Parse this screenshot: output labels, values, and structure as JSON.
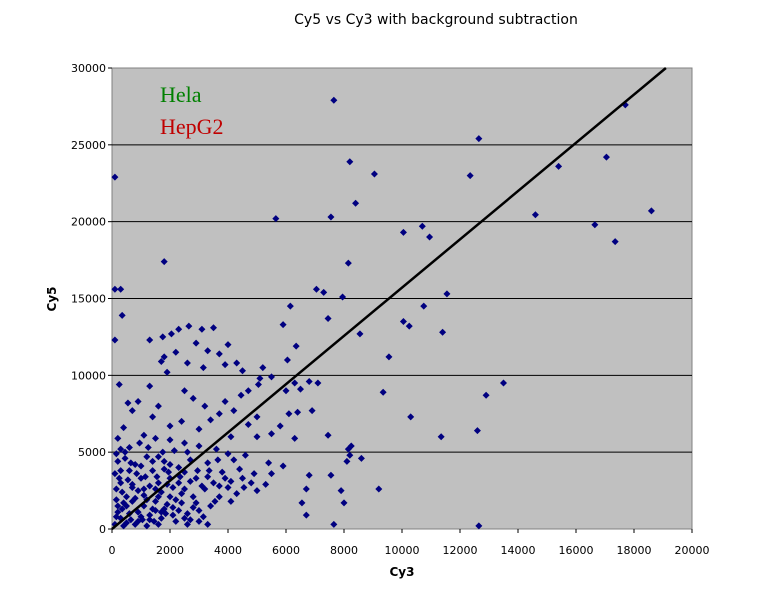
{
  "chart_data": {
    "type": "scatter",
    "title": "Cy5 vs Cy3 with background subtraction",
    "xlabel": "Cy3",
    "ylabel": "Cy5",
    "xlim": [
      0,
      20000
    ],
    "ylim": [
      0,
      30000
    ],
    "x_ticks": [
      0,
      2000,
      4000,
      6000,
      8000,
      10000,
      12000,
      14000,
      16000,
      18000,
      20000
    ],
    "y_ticks": [
      0,
      5000,
      10000,
      15000,
      20000,
      25000,
      30000
    ],
    "grid": "horizontal",
    "plot_background": "#c0c0c0",
    "marker_color": "#000080",
    "marker": "diamond",
    "annotations": [
      {
        "text": "Hela",
        "color": "#008000"
      },
      {
        "text": "HepG2",
        "color": "#c00000"
      }
    ],
    "trendline": {
      "from": [
        0,
        0
      ],
      "to": [
        19100,
        30000
      ],
      "color": "#000000"
    },
    "series": [
      {
        "points": [
          [
            7650,
            27900
          ],
          [
            17700,
            27600
          ],
          [
            12650,
            25400
          ],
          [
            8200,
            23900
          ],
          [
            9050,
            23100
          ],
          [
            12350,
            23000
          ],
          [
            100,
            22900
          ],
          [
            15400,
            23600
          ],
          [
            17050,
            24200
          ],
          [
            8400,
            21200
          ],
          [
            14600,
            20450
          ],
          [
            18600,
            20700
          ],
          [
            5650,
            20200
          ],
          [
            7550,
            20300
          ],
          [
            10700,
            19700
          ],
          [
            16650,
            19800
          ],
          [
            10050,
            19300
          ],
          [
            10950,
            19000
          ],
          [
            17350,
            18700
          ],
          [
            1800,
            17400
          ],
          [
            8150,
            17300
          ],
          [
            7050,
            15600
          ],
          [
            7300,
            15400
          ],
          [
            7950,
            15100
          ],
          [
            6150,
            14500
          ],
          [
            10750,
            14500
          ],
          [
            11550,
            15300
          ],
          [
            300,
            15600
          ],
          [
            100,
            15600
          ],
          [
            350,
            13900
          ],
          [
            7450,
            13700
          ],
          [
            10050,
            13500
          ],
          [
            10250,
            13200
          ],
          [
            5900,
            13300
          ],
          [
            8550,
            12700
          ],
          [
            11400,
            12800
          ],
          [
            6350,
            11900
          ],
          [
            9550,
            11200
          ],
          [
            6050,
            11000
          ],
          [
            100,
            12300
          ],
          [
            1300,
            12300
          ],
          [
            2300,
            13000
          ],
          [
            2650,
            13200
          ],
          [
            3100,
            13000
          ],
          [
            3500,
            13100
          ],
          [
            1750,
            12500
          ],
          [
            2050,
            12700
          ],
          [
            2900,
            12100
          ],
          [
            4000,
            12000
          ],
          [
            1800,
            11200
          ],
          [
            2200,
            11500
          ],
          [
            3300,
            11600
          ],
          [
            3700,
            11400
          ],
          [
            1700,
            10900
          ],
          [
            2600,
            10800
          ],
          [
            3150,
            10500
          ],
          [
            1900,
            10200
          ],
          [
            4300,
            10800
          ],
          [
            5200,
            10500
          ],
          [
            3900,
            10700
          ],
          [
            4500,
            10300
          ],
          [
            5500,
            9900
          ],
          [
            5100,
            9800
          ],
          [
            9350,
            8900
          ],
          [
            13500,
            9500
          ],
          [
            12900,
            8700
          ],
          [
            5050,
            9400
          ],
          [
            6300,
            9500
          ],
          [
            6800,
            9600
          ],
          [
            7100,
            9500
          ],
          [
            6500,
            9100
          ],
          [
            6000,
            9000
          ],
          [
            4700,
            9000
          ],
          [
            1300,
            9300
          ],
          [
            250,
            9400
          ],
          [
            550,
            8200
          ],
          [
            900,
            8300
          ],
          [
            1600,
            8000
          ],
          [
            2500,
            9000
          ],
          [
            3200,
            8000
          ],
          [
            3900,
            8300
          ],
          [
            4450,
            8700
          ],
          [
            2800,
            8500
          ],
          [
            6400,
            7600
          ],
          [
            6100,
            7500
          ],
          [
            10300,
            7300
          ],
          [
            6900,
            7700
          ],
          [
            5000,
            7300
          ],
          [
            4200,
            7700
          ],
          [
            3700,
            7500
          ],
          [
            3400,
            7100
          ],
          [
            2400,
            7000
          ],
          [
            1400,
            7300
          ],
          [
            700,
            7700
          ],
          [
            400,
            6600
          ],
          [
            2000,
            6700
          ],
          [
            3000,
            6500
          ],
          [
            4100,
            6000
          ],
          [
            5000,
            6000
          ],
          [
            5500,
            6200
          ],
          [
            4700,
            6800
          ],
          [
            5800,
            6700
          ],
          [
            12600,
            6400
          ],
          [
            11350,
            6000
          ],
          [
            7450,
            6100
          ],
          [
            6300,
            5900
          ],
          [
            8150,
            5200
          ],
          [
            8250,
            5400
          ],
          [
            8200,
            4800
          ],
          [
            8600,
            4600
          ],
          [
            8100,
            4400
          ],
          [
            5400,
            4300
          ],
          [
            5900,
            4100
          ],
          [
            4600,
            4800
          ],
          [
            4000,
            4900
          ],
          [
            3600,
            5200
          ],
          [
            3000,
            5400
          ],
          [
            2500,
            5600
          ],
          [
            2000,
            5800
          ],
          [
            1500,
            5900
          ],
          [
            1100,
            6100
          ],
          [
            200,
            5900
          ],
          [
            6800,
            3500
          ],
          [
            7550,
            3500
          ],
          [
            6700,
            2600
          ],
          [
            7900,
            2500
          ],
          [
            9200,
            2600
          ],
          [
            6550,
            1700
          ],
          [
            8000,
            1700
          ],
          [
            6700,
            900
          ],
          [
            7650,
            300
          ],
          [
            12650,
            200
          ],
          [
            3300,
            300
          ],
          [
            2700,
            600
          ],
          [
            3400,
            1500
          ],
          [
            4100,
            1800
          ],
          [
            5000,
            2500
          ],
          [
            4800,
            3000
          ],
          [
            5500,
            3600
          ],
          [
            4400,
            3900
          ],
          [
            3900,
            3300
          ],
          [
            4300,
            2300
          ],
          [
            3700,
            2100
          ],
          [
            3000,
            1200
          ],
          [
            2500,
            2600
          ],
          [
            2000,
            3300
          ],
          [
            1600,
            3000
          ],
          [
            1200,
            4700
          ],
          [
            800,
            4200
          ],
          [
            450,
            5000
          ],
          [
            200,
            4400
          ],
          [
            100,
            3600
          ],
          [
            300,
            3000
          ],
          [
            700,
            2700
          ],
          [
            1100,
            2200
          ],
          [
            1500,
            1800
          ],
          [
            2100,
            1400
          ],
          [
            2600,
            1000
          ],
          [
            2900,
            1700
          ],
          [
            3200,
            2600
          ],
          [
            3500,
            3000
          ],
          [
            3800,
            3700
          ],
          [
            2300,
            4000
          ],
          [
            2700,
            4500
          ],
          [
            1800,
            4400
          ],
          [
            1400,
            3800
          ],
          [
            1000,
            3300
          ],
          [
            600,
            3800
          ],
          [
            350,
            2400
          ],
          [
            150,
            1900
          ],
          [
            500,
            1500
          ],
          [
            900,
            1100
          ],
          [
            1300,
            900
          ],
          [
            1700,
            700
          ],
          [
            2200,
            500
          ],
          [
            2600,
            300
          ],
          [
            300,
            700
          ],
          [
            100,
            300
          ],
          [
            400,
            200
          ],
          [
            800,
            300
          ],
          [
            1200,
            200
          ],
          [
            1600,
            300
          ],
          [
            200,
            1100
          ],
          [
            650,
            600
          ],
          [
            1050,
            600
          ],
          [
            1450,
            500
          ],
          [
            1850,
            1000
          ],
          [
            2200,
            1900
          ],
          [
            2400,
            2300
          ],
          [
            2800,
            2100
          ],
          [
            3100,
            2800
          ],
          [
            2700,
            3100
          ],
          [
            2100,
            2700
          ],
          [
            1700,
            2400
          ],
          [
            1300,
            2800
          ],
          [
            900,
            2500
          ],
          [
            500,
            2100
          ],
          [
            150,
            2600
          ],
          [
            250,
            3300
          ],
          [
            550,
            3200
          ],
          [
            850,
            3600
          ],
          [
            1150,
            3400
          ],
          [
            1550,
            3400
          ],
          [
            1950,
            3700
          ],
          [
            2350,
            3400
          ],
          [
            450,
            4600
          ],
          [
            1250,
            5300
          ],
          [
            1750,
            5000
          ],
          [
            2150,
            5100
          ],
          [
            2600,
            5000
          ],
          [
            950,
            5600
          ],
          [
            3300,
            4300
          ],
          [
            3650,
            4500
          ],
          [
            4200,
            4500
          ],
          [
            3350,
            3800
          ],
          [
            2950,
            3800
          ],
          [
            4900,
            3600
          ],
          [
            5300,
            2900
          ],
          [
            4550,
            2700
          ],
          [
            4000,
            2700
          ],
          [
            3550,
            1800
          ],
          [
            3150,
            800
          ],
          [
            2800,
            1400
          ],
          [
            350,
            1300
          ],
          [
            700,
            1800
          ],
          [
            1100,
            1500
          ],
          [
            1500,
            1200
          ],
          [
            1900,
            1600
          ],
          [
            2300,
            1200
          ],
          [
            600,
            1000
          ],
          [
            1000,
            800
          ],
          [
            1400,
            1300
          ],
          [
            1800,
            1300
          ],
          [
            2500,
            700
          ],
          [
            3000,
            500
          ],
          [
            500,
            400
          ],
          [
            900,
            500
          ],
          [
            1300,
            600
          ],
          [
            1700,
            1100
          ],
          [
            2100,
            900
          ],
          [
            150,
            800
          ],
          [
            200,
            1500
          ],
          [
            400,
            1700
          ],
          [
            800,
            2000
          ],
          [
            1200,
            1900
          ],
          [
            1600,
            2100
          ],
          [
            2000,
            2100
          ],
          [
            2400,
            1700
          ],
          [
            700,
            2900
          ],
          [
            1100,
            2600
          ],
          [
            1500,
            2600
          ],
          [
            1900,
            2900
          ],
          [
            2300,
            3000
          ],
          [
            300,
            3800
          ],
          [
            650,
            4300
          ],
          [
            1000,
            4100
          ],
          [
            1400,
            4400
          ],
          [
            1800,
            3900
          ],
          [
            600,
            5300
          ],
          [
            300,
            5200
          ],
          [
            150,
            4900
          ],
          [
            1600,
            4700
          ],
          [
            2000,
            4200
          ],
          [
            2500,
            3700
          ],
          [
            2900,
            3300
          ],
          [
            3300,
            3400
          ],
          [
            3700,
            2800
          ],
          [
            4100,
            3100
          ],
          [
            4500,
            3300
          ]
        ]
      }
    ]
  }
}
